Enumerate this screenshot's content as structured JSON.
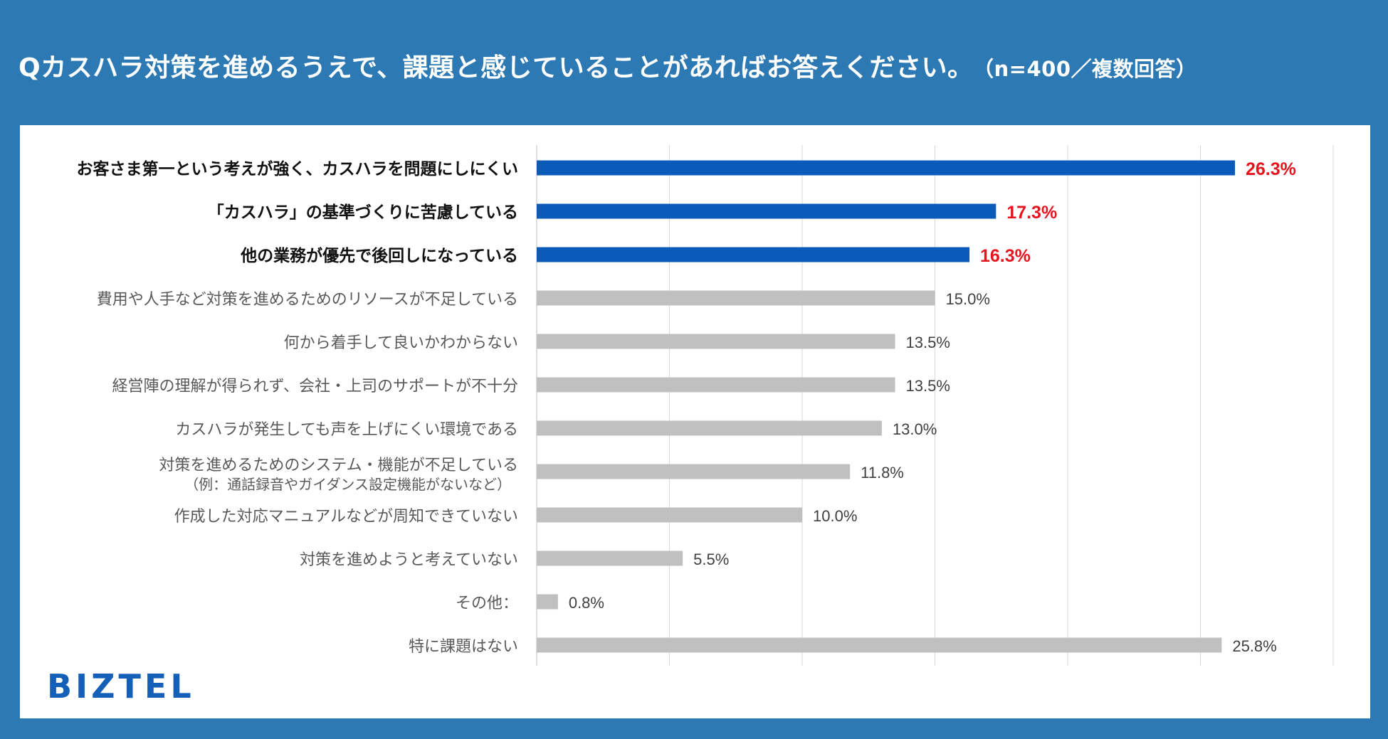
{
  "title": {
    "main": "Qカスハラ対策を進めるうえで、課題と感じていることがあればお答えください。",
    "note": "（n=400／複数回答）"
  },
  "logo": "BIZTEL",
  "colors": {
    "background": "#2c79b3",
    "highlight_bar": "#0a5bb9",
    "normal_bar": "#c0c0c0",
    "highlight_value": "#e5141e",
    "logo": "#1460b8"
  },
  "chart_data": {
    "type": "bar",
    "orientation": "horizontal",
    "xlim": [
      0,
      30
    ],
    "gridlines": [
      5,
      10,
      15,
      20,
      25,
      30
    ],
    "categories": [
      "お客さま第一という考えが強く、カスハラを問題にしにくい",
      "「カスハラ」の基準づくりに苦慮している",
      "他の業務が優先で後回しになっている",
      "費用や人手など対策を進めるためのリソースが不足している",
      "何から着手して良いかわからない",
      "経営陣の理解が得られず、会社・上司のサポートが不十分",
      "カスハラが発生しても声を上げにくい環境である",
      "対策を進めるためのシステム・機能が不足している",
      "作成した対応マニュアルなどが周知できていない",
      "対策を進めようと考えていない",
      "その他：",
      "特に課題はない"
    ],
    "sublabels": [
      "",
      "",
      "",
      "",
      "",
      "",
      "",
      "（例：通話録音やガイダンス設定機能がないなど）",
      "",
      "",
      "",
      ""
    ],
    "values": [
      26.3,
      17.3,
      16.3,
      15.0,
      13.5,
      13.5,
      13.0,
      11.8,
      10.0,
      5.5,
      0.8,
      25.8
    ],
    "value_labels": [
      "26.3%",
      "17.3%",
      "16.3%",
      "15.0%",
      "13.5%",
      "13.5%",
      "13.0%",
      "11.8%",
      "10.0%",
      "5.5%",
      "0.8%",
      "25.8%"
    ],
    "highlighted": [
      true,
      true,
      true,
      false,
      false,
      false,
      false,
      false,
      false,
      false,
      false,
      false
    ]
  }
}
